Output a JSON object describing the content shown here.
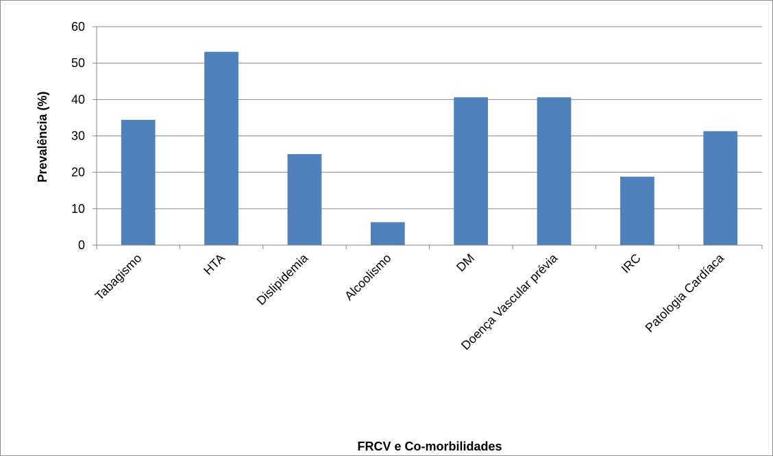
{
  "chart_data": {
    "type": "bar",
    "title": "",
    "xlabel": "FRCV e Co-morbilidades",
    "ylabel": "Prevalência (%)",
    "categories": [
      "Tabagismo",
      "HTA",
      "Dislipidemia",
      "Alcoolismo",
      "DM",
      "Doença Vascular prévia",
      "IRC",
      "Patologia Cardíaca"
    ],
    "values": [
      34.4,
      53.1,
      25.0,
      6.3,
      40.6,
      40.6,
      18.8,
      31.3
    ],
    "ylim": [
      0,
      60
    ],
    "yticks": [
      0,
      10,
      20,
      30,
      40,
      50,
      60
    ],
    "grid": true,
    "legend": "none",
    "bar_color": "#4f81bd",
    "grid_color": "#868686"
  }
}
